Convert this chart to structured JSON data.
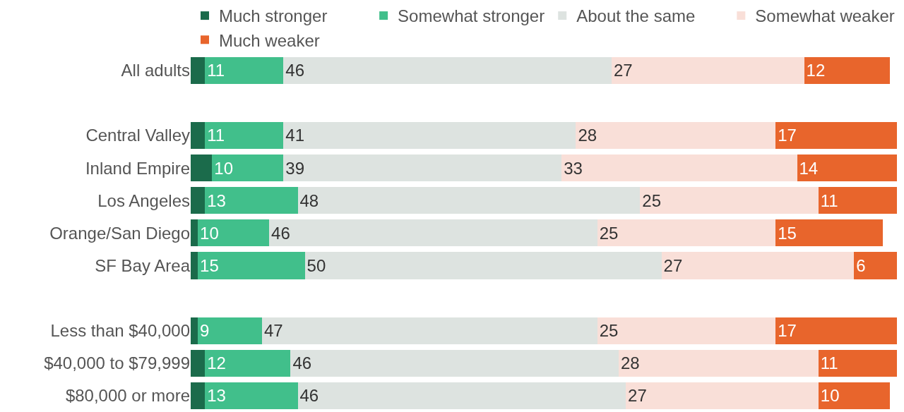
{
  "chart_data": {
    "type": "bar",
    "orientation": "horizontal",
    "stacked": true,
    "legend": "top",
    "xlim": [
      0,
      100
    ],
    "tick_labels": "y",
    "categories": [
      "All adults",
      null,
      "Central Valley",
      "Inland Empire",
      "Los Angeles",
      "Orange/San Diego",
      "SF Bay Area",
      null,
      "Less than $40,000",
      "$40,000 to $79,999",
      "$80,000 or more"
    ],
    "series": [
      {
        "name": "Much stronger",
        "color": "#1b6b4b",
        "values": [
          2,
          null,
          2,
          3,
          2,
          1,
          1,
          null,
          1,
          2,
          2
        ],
        "value_labels": [
          null,
          null,
          null,
          null,
          null,
          null,
          null,
          null,
          null,
          null,
          null
        ]
      },
      {
        "name": "Somewhat stronger",
        "color": "#41bf8b",
        "values": [
          11,
          null,
          11,
          10,
          13,
          10,
          15,
          null,
          9,
          12,
          13
        ],
        "value_labels": [
          "11",
          null,
          "11",
          "10",
          "13",
          "10",
          "15",
          null,
          "9",
          "12",
          "13"
        ]
      },
      {
        "name": "About the same",
        "color": "#dde3e0",
        "values": [
          46,
          null,
          41,
          39,
          48,
          46,
          50,
          null,
          47,
          46,
          46
        ],
        "value_labels": [
          "46",
          null,
          "41",
          "39",
          "48",
          "46",
          "50",
          null,
          "47",
          "46",
          "46"
        ]
      },
      {
        "name": "Somewhat weaker",
        "color": "#f9dfd8",
        "values": [
          27,
          null,
          28,
          33,
          25,
          25,
          27,
          null,
          25,
          28,
          27
        ],
        "value_labels": [
          "27",
          null,
          "28",
          "33",
          "25",
          "25",
          "27",
          null,
          "25",
          "28",
          "27"
        ]
      },
      {
        "name": "Much weaker",
        "color": "#e8652c",
        "values": [
          12,
          null,
          17,
          14,
          11,
          15,
          6,
          null,
          17,
          11,
          10
        ],
        "value_labels": [
          "12",
          null,
          "17",
          "14",
          "11",
          "15",
          "6",
          null,
          "17",
          "11",
          "10"
        ]
      }
    ]
  }
}
